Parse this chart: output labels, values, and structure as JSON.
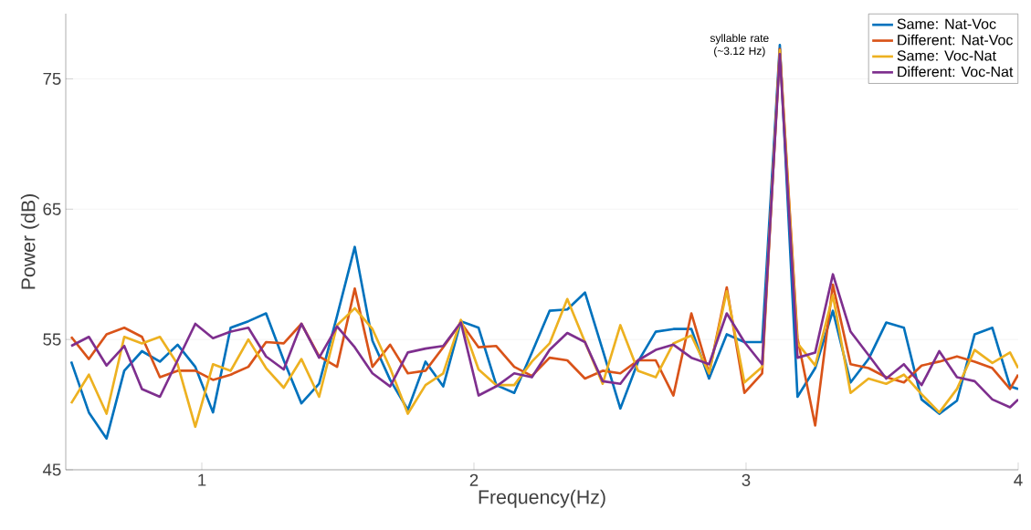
{
  "chart_data": {
    "type": "line",
    "xlabel": "Frequency(Hz)",
    "ylabel": "Power (dB)",
    "x": [
      0.52,
      0.585,
      0.65,
      0.715,
      0.78,
      0.846,
      0.911,
      0.976,
      1.041,
      1.106,
      1.171,
      1.236,
      1.301,
      1.366,
      1.431,
      1.497,
      1.562,
      1.627,
      1.692,
      1.757,
      1.822,
      1.887,
      1.952,
      2.017,
      2.082,
      2.148,
      2.213,
      2.278,
      2.343,
      2.408,
      2.473,
      2.538,
      2.603,
      2.668,
      2.733,
      2.799,
      2.864,
      2.929,
      2.994,
      3.059,
      3.124,
      3.189,
      3.254,
      3.319,
      3.384,
      3.45,
      3.515,
      3.58,
      3.645,
      3.71,
      3.775,
      3.84,
      3.905,
      3.97,
      4.0
    ],
    "series": [
      {
        "name": "Same: Nat-Voc",
        "color": "#0072bd",
        "values": [
          53.3,
          49.4,
          47.4,
          52.6,
          54.1,
          53.3,
          54.6,
          52.9,
          49.4,
          55.9,
          56.4,
          57.0,
          53.4,
          50.1,
          51.6,
          56.8,
          62.1,
          54.9,
          51.9,
          49.6,
          53.3,
          51.4,
          56.4,
          55.9,
          51.5,
          50.9,
          54.0,
          57.2,
          57.3,
          58.6,
          54.2,
          49.7,
          53.3,
          55.6,
          55.8,
          55.8,
          52.0,
          55.4,
          54.8,
          54.8,
          77.6,
          50.6,
          52.8,
          57.2,
          51.7,
          53.5,
          56.3,
          55.9,
          50.4,
          49.3,
          50.3,
          55.4,
          55.9,
          51.4,
          51.2
        ]
      },
      {
        "name": "Different: Nat-Voc",
        "color": "#d95319",
        "values": [
          55.2,
          53.5,
          55.4,
          55.9,
          55.2,
          52.1,
          52.6,
          52.6,
          51.9,
          52.3,
          52.9,
          54.8,
          54.7,
          56.2,
          53.7,
          52.9,
          58.9,
          52.9,
          54.6,
          52.4,
          52.6,
          54.4,
          56.3,
          54.4,
          54.5,
          52.9,
          52.2,
          53.6,
          53.4,
          52.0,
          52.6,
          52.4,
          53.4,
          53.4,
          50.7,
          57.0,
          52.4,
          59.0,
          50.9,
          52.4,
          77.3,
          55.1,
          48.4,
          59.2,
          53.1,
          52.8,
          52.1,
          51.7,
          53.0,
          53.3,
          53.7,
          53.3,
          52.8,
          51.2,
          52.3
        ]
      },
      {
        "name": "Same: Voc-Nat",
        "color": "#edb120",
        "values": [
          50.1,
          52.3,
          49.3,
          55.2,
          54.7,
          55.2,
          53.1,
          48.3,
          53.1,
          52.6,
          55.0,
          52.8,
          51.3,
          53.5,
          50.6,
          56.1,
          57.4,
          55.8,
          52.8,
          49.3,
          51.5,
          52.4,
          56.5,
          52.7,
          51.5,
          51.5,
          53.3,
          54.7,
          58.1,
          54.8,
          51.6,
          56.1,
          52.6,
          52.1,
          54.7,
          55.3,
          52.4,
          58.7,
          51.7,
          52.9,
          77.2,
          54.7,
          53.0,
          58.4,
          50.9,
          52.0,
          51.6,
          52.3,
          50.8,
          49.4,
          51.2,
          54.2,
          53.2,
          54.0,
          52.8
        ]
      },
      {
        "name": "Different: Voc-Nat",
        "color": "#7e2f8e",
        "values": [
          54.5,
          55.2,
          53.0,
          54.5,
          51.2,
          50.6,
          53.4,
          56.2,
          55.1,
          55.6,
          55.9,
          53.7,
          52.7,
          56.2,
          53.6,
          56.0,
          54.4,
          52.4,
          51.4,
          54.0,
          54.3,
          54.5,
          56.3,
          50.7,
          51.4,
          52.4,
          52.1,
          54.2,
          55.5,
          54.8,
          51.8,
          51.6,
          53.4,
          54.2,
          54.6,
          53.6,
          53.1,
          57.0,
          54.8,
          53.1,
          76.9,
          53.6,
          54.0,
          60.0,
          55.6,
          53.8,
          52.0,
          53.1,
          51.5,
          54.1,
          52.1,
          51.8,
          50.4,
          49.8,
          50.4
        ]
      }
    ],
    "xlim": [
      0.5,
      4
    ],
    "ylim": [
      45,
      80
    ],
    "xticks": [
      1,
      2,
      3,
      4
    ],
    "yticks": [
      45,
      55,
      65,
      75
    ],
    "grid": "y",
    "legend": "top right",
    "annotations": [
      {
        "text": "syllable rate (~3.12 Hz)",
        "x": 3.12,
        "y": 77.56
      }
    ]
  }
}
